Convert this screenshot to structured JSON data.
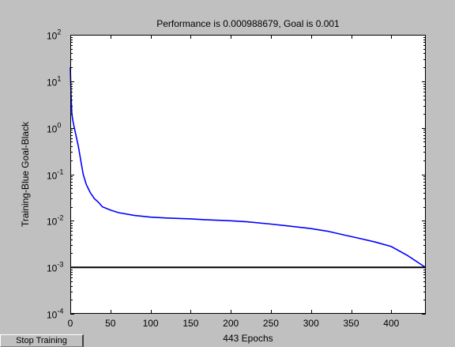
{
  "window": {
    "stop_button_label": "Stop Training"
  },
  "chart_data": {
    "type": "line",
    "title": "Performance is 0.000988679, Goal is 0.001",
    "xlabel": "443 Epochs",
    "ylabel": "Training-Blue  Goal-Black",
    "y_scale": "log",
    "xlim": [
      0,
      443
    ],
    "ylim_exponents": [
      -4,
      2
    ],
    "x_ticks": [
      0,
      50,
      100,
      150,
      200,
      250,
      300,
      350,
      400
    ],
    "y_tick_exponents": [
      -4,
      -3,
      -2,
      -1,
      0,
      1,
      2
    ],
    "y_tick_base": "10",
    "grid": false,
    "colors": {
      "training": "#0000ff",
      "goal": "#000000",
      "axes_bg": "#ffffff",
      "window_bg": "#c0c0c0"
    },
    "series": [
      {
        "color": "#0000ff",
        "x": [
          0,
          1,
          2,
          3,
          4,
          5,
          7,
          10,
          13,
          16,
          20,
          25,
          30,
          35,
          40,
          50,
          60,
          80,
          100,
          120,
          150,
          170,
          200,
          220,
          250,
          270,
          300,
          320,
          340,
          360,
          380,
          400,
          420,
          443
        ],
        "y": [
          20,
          5,
          2,
          1.5,
          1.2,
          1.0,
          0.7,
          0.4,
          0.2,
          0.1,
          0.06,
          0.04,
          0.03,
          0.025,
          0.02,
          0.017,
          0.015,
          0.013,
          0.012,
          0.0115,
          0.011,
          0.0105,
          0.01,
          0.0095,
          0.0085,
          0.0078,
          0.0068,
          0.006,
          0.005,
          0.0042,
          0.0035,
          0.0028,
          0.0018,
          0.000988679
        ]
      },
      {
        "color": "#000000",
        "x": [
          0,
          443
        ],
        "y": [
          0.001,
          0.001
        ]
      }
    ]
  }
}
